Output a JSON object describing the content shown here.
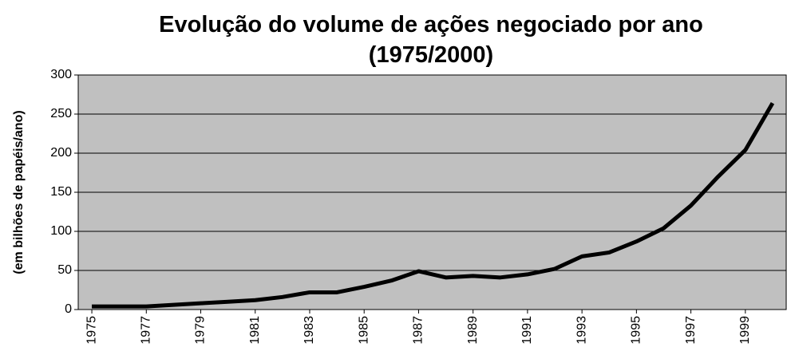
{
  "chart_data": {
    "type": "line",
    "title": "Evolução do volume de ações negociado por ano",
    "subtitle": "(1975/2000)",
    "y_label": "(em bilhões de papéis/ano)",
    "x": [
      1975,
      1976,
      1977,
      1978,
      1979,
      1980,
      1981,
      1982,
      1983,
      1984,
      1985,
      1986,
      1987,
      1988,
      1989,
      1990,
      1991,
      1992,
      1993,
      1994,
      1995,
      1996,
      1997,
      1998,
      1999,
      2000
    ],
    "series": [
      {
        "color": "#000000",
        "values": [
          4,
          4,
          4,
          6,
          8,
          10,
          12,
          16,
          22,
          22,
          29,
          37,
          49,
          41,
          43,
          41,
          45,
          52,
          68,
          73,
          87,
          104,
          133,
          170,
          204,
          264
        ]
      }
    ],
    "xlim": [
      1974.5,
      2000.5
    ],
    "xticks": [
      1975,
      1977,
      1979,
      1981,
      1983,
      1985,
      1987,
      1989,
      1991,
      1993,
      1995,
      1997,
      1999
    ],
    "ylim": [
      0,
      300
    ],
    "yticks": [
      0,
      50,
      100,
      150,
      200,
      250,
      300
    ],
    "grid": true
  }
}
